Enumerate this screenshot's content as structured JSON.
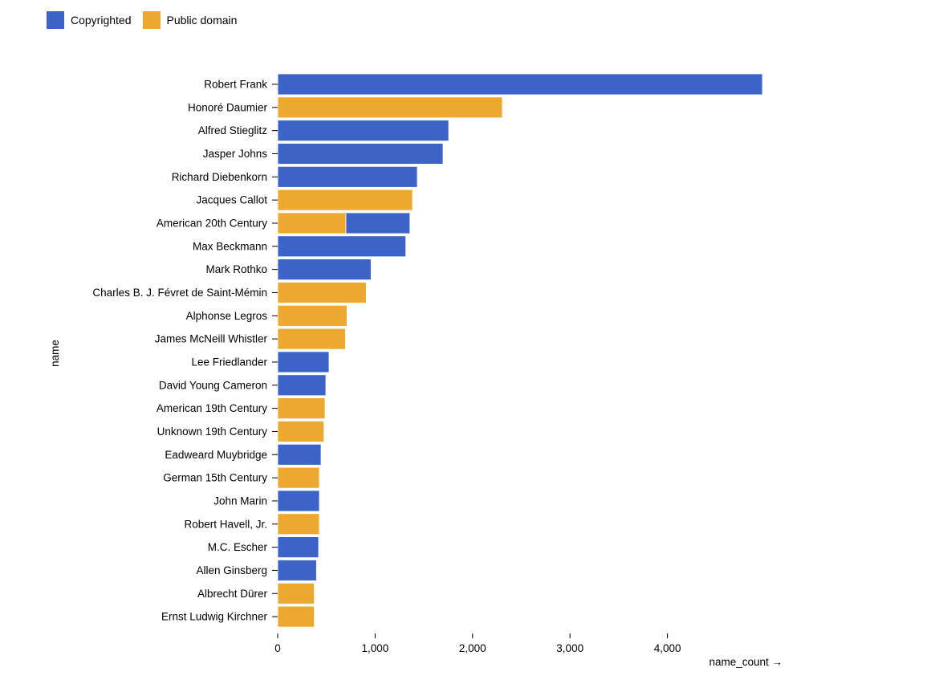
{
  "chart_data": {
    "type": "bar",
    "orientation": "horizontal",
    "stacked": true,
    "xlabel": "name_count →",
    "ylabel": "name",
    "xlim": [
      0,
      5000
    ],
    "xticks": [
      0,
      1000,
      2000,
      3000,
      4000
    ],
    "xtick_labels": [
      "0",
      "1,000",
      "2,000",
      "3,000",
      "4,000"
    ],
    "grid": false,
    "legend_position": "top-left",
    "categories": [
      "Robert Frank",
      "Honoré Daumier",
      "Alfred Stieglitz",
      "Jasper Johns",
      "Richard Diebenkorn",
      "Jacques Callot",
      "American 20th Century",
      "Max Beckmann",
      "Mark Rothko",
      "Charles B. J. Févret de Saint-Mémin",
      "Alphonse Legros",
      "James McNeill Whistler",
      "Lee Friedlander",
      "David Young Cameron",
      "American 19th Century",
      "Unknown 19th Century",
      "Eadweard Muybridge",
      "German 15th Century",
      "John Marin",
      "Robert Havell, Jr.",
      "M.C. Escher",
      "Allen Ginsberg",
      "Albrecht Dürer",
      "Ernst Ludwig Kirchner"
    ],
    "series": [
      {
        "name": "Public domain",
        "color": "#eca82f",
        "values": [
          0,
          2306,
          0,
          0,
          0,
          1384,
          700,
          0,
          0,
          909,
          711,
          695,
          0,
          0,
          486,
          475,
          0,
          428,
          0,
          428,
          0,
          0,
          376,
          376
        ]
      },
      {
        "name": "Copyrighted",
        "color": "#3b63c8",
        "values": [
          4975,
          0,
          1755,
          1697,
          1433,
          0,
          657,
          1315,
          958,
          0,
          0,
          0,
          527,
          494,
          0,
          0,
          445,
          0,
          428,
          0,
          420,
          398,
          0,
          0
        ]
      }
    ],
    "legend": [
      {
        "label": "Copyrighted",
        "color": "#3b63c8"
      },
      {
        "label": "Public domain",
        "color": "#eca82f"
      }
    ]
  }
}
